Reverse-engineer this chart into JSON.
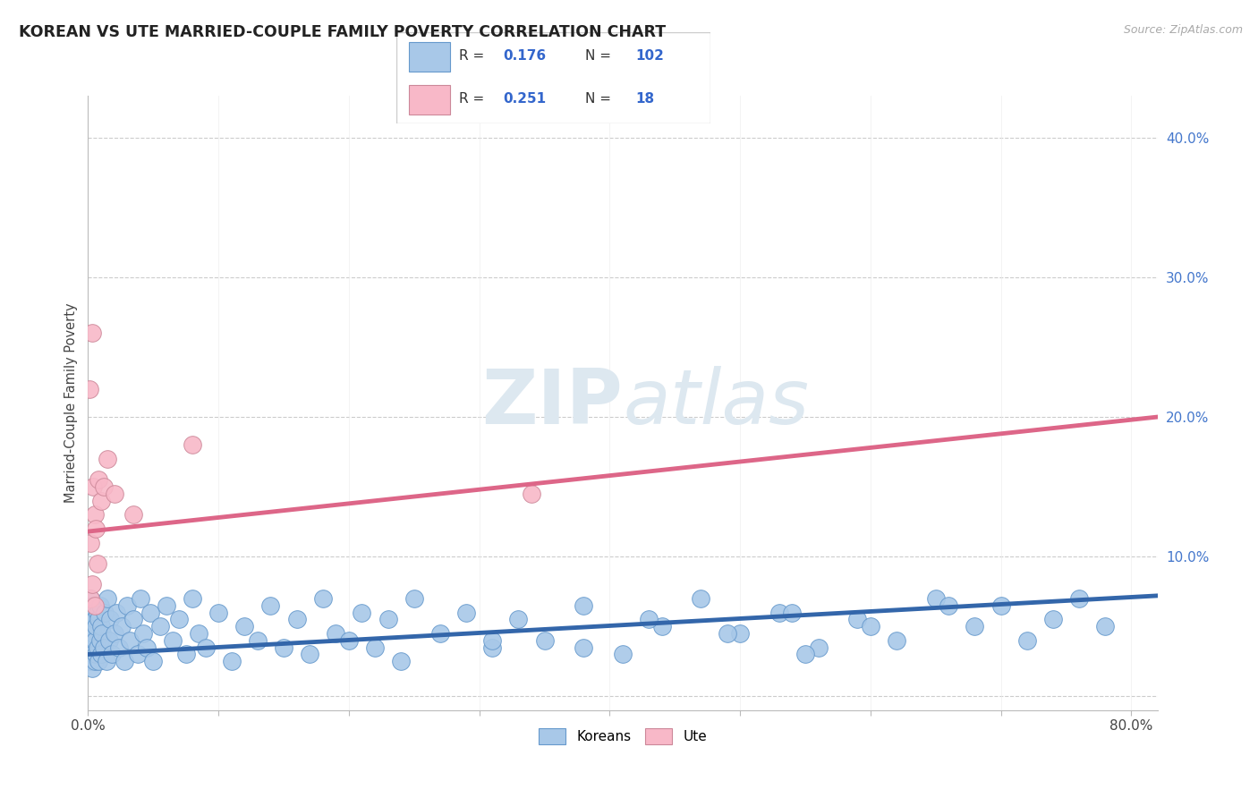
{
  "title": "KOREAN VS UTE MARRIED-COUPLE FAMILY POVERTY CORRELATION CHART",
  "source_text": "Source: ZipAtlas.com",
  "ylabel": "Married-Couple Family Poverty",
  "xlim": [
    0.0,
    0.82
  ],
  "ylim": [
    -0.01,
    0.43
  ],
  "yticks": [
    0.0,
    0.1,
    0.2,
    0.3,
    0.4
  ],
  "yticklabels": [
    "",
    "10.0%",
    "20.0%",
    "30.0%",
    "40.0%"
  ],
  "korean_color": "#a8c8e8",
  "korean_edge_color": "#6699cc",
  "ute_color": "#f8b8c8",
  "ute_edge_color": "#cc8899",
  "korean_line_color": "#3366aa",
  "ute_line_color": "#dd6688",
  "R_korean": 0.176,
  "N_korean": 102,
  "R_ute": 0.251,
  "N_ute": 18,
  "korean_line_x0": 0.0,
  "korean_line_x1": 0.82,
  "korean_line_y0": 0.03,
  "korean_line_y1": 0.072,
  "ute_line_x0": 0.0,
  "ute_line_x1": 0.82,
  "ute_line_y0": 0.118,
  "ute_line_y1": 0.2,
  "korean_x": [
    0.001,
    0.001,
    0.001,
    0.002,
    0.002,
    0.002,
    0.002,
    0.003,
    0.003,
    0.003,
    0.003,
    0.004,
    0.004,
    0.004,
    0.005,
    0.005,
    0.005,
    0.006,
    0.006,
    0.007,
    0.007,
    0.008,
    0.008,
    0.009,
    0.009,
    0.01,
    0.01,
    0.011,
    0.012,
    0.013,
    0.014,
    0.015,
    0.016,
    0.017,
    0.018,
    0.02,
    0.022,
    0.024,
    0.026,
    0.028,
    0.03,
    0.032,
    0.035,
    0.038,
    0.04,
    0.042,
    0.045,
    0.048,
    0.05,
    0.055,
    0.06,
    0.065,
    0.07,
    0.075,
    0.08,
    0.085,
    0.09,
    0.1,
    0.11,
    0.12,
    0.13,
    0.14,
    0.15,
    0.16,
    0.17,
    0.18,
    0.19,
    0.2,
    0.21,
    0.22,
    0.23,
    0.24,
    0.25,
    0.27,
    0.29,
    0.31,
    0.33,
    0.35,
    0.38,
    0.41,
    0.44,
    0.47,
    0.5,
    0.53,
    0.56,
    0.59,
    0.62,
    0.65,
    0.68,
    0.7,
    0.72,
    0.74,
    0.76,
    0.78,
    0.66,
    0.49,
    0.54,
    0.38,
    0.43,
    0.31,
    0.55,
    0.6
  ],
  "korean_y": [
    0.03,
    0.045,
    0.06,
    0.025,
    0.04,
    0.055,
    0.07,
    0.02,
    0.035,
    0.05,
    0.065,
    0.03,
    0.045,
    0.06,
    0.025,
    0.04,
    0.055,
    0.03,
    0.05,
    0.035,
    0.06,
    0.025,
    0.055,
    0.04,
    0.065,
    0.03,
    0.05,
    0.045,
    0.035,
    0.06,
    0.025,
    0.07,
    0.04,
    0.055,
    0.03,
    0.045,
    0.06,
    0.035,
    0.05,
    0.025,
    0.065,
    0.04,
    0.055,
    0.03,
    0.07,
    0.045,
    0.035,
    0.06,
    0.025,
    0.05,
    0.065,
    0.04,
    0.055,
    0.03,
    0.07,
    0.045,
    0.035,
    0.06,
    0.025,
    0.05,
    0.04,
    0.065,
    0.035,
    0.055,
    0.03,
    0.07,
    0.045,
    0.04,
    0.06,
    0.035,
    0.055,
    0.025,
    0.07,
    0.045,
    0.06,
    0.035,
    0.055,
    0.04,
    0.065,
    0.03,
    0.05,
    0.07,
    0.045,
    0.06,
    0.035,
    0.055,
    0.04,
    0.07,
    0.05,
    0.065,
    0.04,
    0.055,
    0.07,
    0.05,
    0.065,
    0.045,
    0.06,
    0.035,
    0.055,
    0.04,
    0.03,
    0.05
  ],
  "ute_x": [
    0.001,
    0.002,
    0.002,
    0.003,
    0.003,
    0.004,
    0.005,
    0.005,
    0.006,
    0.007,
    0.008,
    0.01,
    0.012,
    0.015,
    0.02,
    0.035,
    0.34,
    0.08
  ],
  "ute_y": [
    0.22,
    0.07,
    0.11,
    0.08,
    0.26,
    0.15,
    0.065,
    0.13,
    0.12,
    0.095,
    0.155,
    0.14,
    0.15,
    0.17,
    0.145,
    0.13,
    0.145,
    0.18
  ]
}
